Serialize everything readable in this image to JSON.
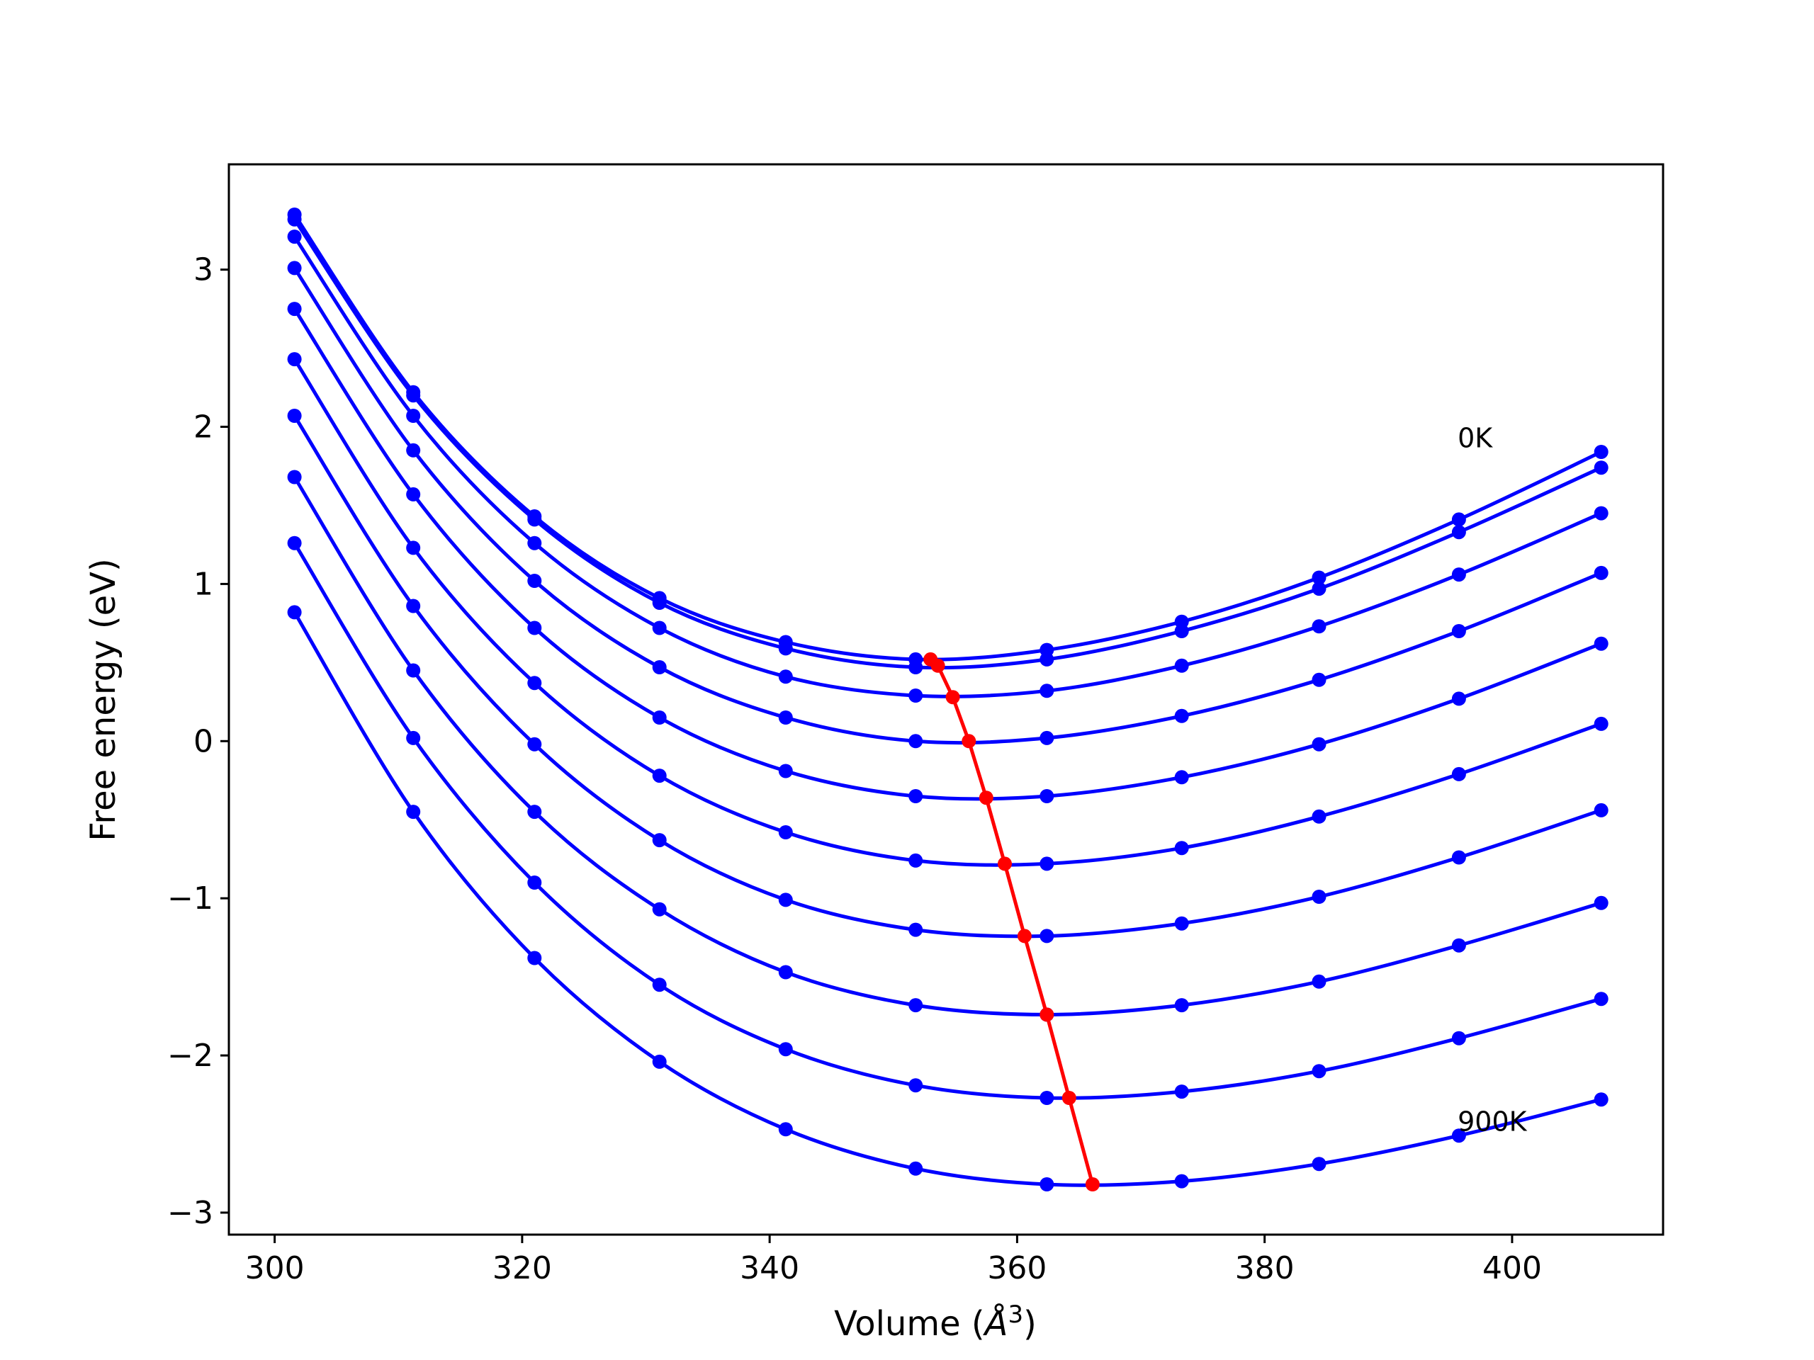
{
  "chart_data": {
    "type": "line",
    "title": "",
    "xlabel": "Volume (",
    "xlabel_unit": "Å",
    "xlabel_exp": "3",
    "xlabel_close": ")",
    "ylabel": "Free energy (eV)",
    "xlim": [
      296.3,
      412.2
    ],
    "ylim": [
      -3.14,
      3.67
    ],
    "xticks": [
      300,
      320,
      340,
      360,
      380,
      400
    ],
    "yticks": [
      -3,
      -2,
      -1,
      0,
      1,
      2,
      3
    ],
    "ytick_labels": [
      "−3",
      "−2",
      "−1",
      "0",
      "1",
      "2",
      "3"
    ],
    "grid": false,
    "colors": {
      "curves": "#0000ff",
      "minima": "#ff0000"
    },
    "x": [
      301.6,
      311.2,
      321.0,
      331.1,
      341.3,
      351.8,
      362.4,
      373.3,
      384.4,
      395.7,
      407.2
    ],
    "series": [
      {
        "values": [
          3.35,
          2.22,
          1.43,
          0.91,
          0.63,
          0.52,
          0.58,
          0.76,
          1.04,
          1.41,
          1.84
        ]
      },
      {
        "values": [
          3.32,
          2.2,
          1.41,
          0.88,
          0.59,
          0.47,
          0.52,
          0.7,
          0.97,
          1.33,
          1.74
        ]
      },
      {
        "values": [
          3.21,
          2.07,
          1.26,
          0.72,
          0.41,
          0.29,
          0.32,
          0.48,
          0.73,
          1.06,
          1.45
        ]
      },
      {
        "values": [
          3.01,
          1.85,
          1.02,
          0.47,
          0.15,
          0.0,
          0.02,
          0.16,
          0.39,
          0.7,
          1.07
        ]
      },
      {
        "values": [
          2.75,
          1.57,
          0.72,
          0.15,
          -0.19,
          -0.35,
          -0.35,
          -0.23,
          -0.02,
          0.27,
          0.62
        ]
      },
      {
        "values": [
          2.43,
          1.23,
          0.37,
          -0.22,
          -0.58,
          -0.76,
          -0.78,
          -0.68,
          -0.48,
          -0.21,
          0.11
        ]
      },
      {
        "values": [
          2.07,
          0.86,
          -0.02,
          -0.63,
          -1.01,
          -1.2,
          -1.24,
          -1.16,
          -0.99,
          -0.74,
          -0.44
        ]
      },
      {
        "values": [
          1.68,
          0.45,
          -0.45,
          -1.07,
          -1.47,
          -1.68,
          -1.74,
          -1.68,
          -1.53,
          -1.3,
          -1.03
        ]
      },
      {
        "values": [
          1.26,
          0.02,
          -0.9,
          -1.55,
          -1.96,
          -2.19,
          -2.27,
          -2.23,
          -2.1,
          -1.89,
          -1.64
        ]
      },
      {
        "values": [
          0.82,
          -0.45,
          -1.38,
          -2.04,
          -2.47,
          -2.72,
          -2.82,
          -2.8,
          -2.69,
          -2.51,
          -2.28
        ]
      }
    ],
    "minima": {
      "x": [
        353.0,
        353.6,
        354.8,
        356.1,
        357.5,
        359.0,
        360.6,
        362.4,
        364.2,
        366.1
      ],
      "y": [
        0.52,
        0.48,
        0.28,
        0.0,
        -0.36,
        -0.78,
        -1.24,
        -1.74,
        -2.27,
        -2.82
      ]
    },
    "annotations": [
      {
        "text": "0K",
        "x": 395.6,
        "y": 1.87
      },
      {
        "text": "900K",
        "x": 395.6,
        "y": -2.48
      }
    ]
  }
}
